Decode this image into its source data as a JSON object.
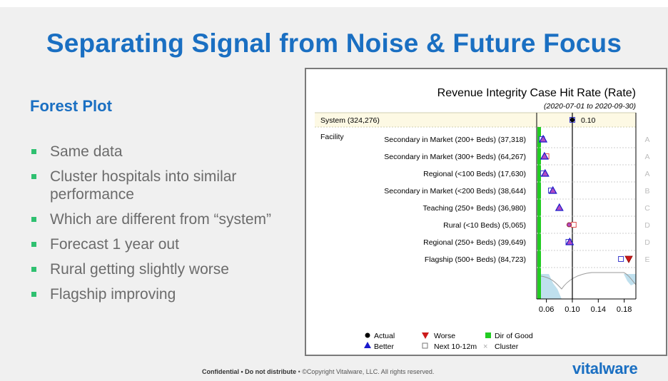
{
  "slide": {
    "title": "Separating Signal from Noise & Future Focus",
    "subtitle": "Forest Plot",
    "bullets": [
      "Same data",
      "Cluster hospitals into similar performance",
      "Which are different from “system”",
      "Forecast 1 year out",
      "Rural getting slightly worse",
      "Flagship improving"
    ],
    "footer_bold": "Confidential • Do not distribute",
    "footer_rest": " • ©Copyright Vitalware, LLC. All rights reserved.",
    "logo": "vitalware"
  },
  "chart_data": {
    "type": "forest",
    "title": "Revenue Integrity Case Hit Rate (Rate)",
    "subtitle": "(2020-07-01 to 2020-09-30)",
    "system": {
      "label": "System (324,276)",
      "value": 0.1,
      "value_label": "0.10"
    },
    "group_label": "Facility",
    "xlim": [
      0.045,
      0.198
    ],
    "xticks": [
      0.06,
      0.1,
      0.14,
      0.18
    ],
    "xtick_labels": [
      "0.06",
      "0.10",
      "0.14",
      "0.18"
    ],
    "dir_of_good": "lower",
    "rows": [
      {
        "label": "Secondary in Market (200+ Beds) (37,318)",
        "actual": 0.055,
        "next": 0.053,
        "marker": "better",
        "cluster": "A"
      },
      {
        "label": "Secondary in Market (300+ Beds) (64,267)",
        "actual": 0.057,
        "next": 0.06,
        "marker": "better",
        "cluster": "A"
      },
      {
        "label": "Regional (<100 Beds) (17,630)",
        "actual": 0.058,
        "next": 0.055,
        "marker": "better",
        "cluster": "A"
      },
      {
        "label": "Secondary in Market (<200 Beds) (38,644)",
        "actual": 0.07,
        "next": 0.067,
        "marker": "better",
        "cluster": "B"
      },
      {
        "label": "Teaching (250+ Beds) (36,980)",
        "actual": 0.08,
        "next": null,
        "marker": "better",
        "cluster": "C"
      },
      {
        "label": "Rural (<10 Beds) (5,065)",
        "actual": 0.095,
        "next": 0.102,
        "marker": "dot",
        "cluster": "D"
      },
      {
        "label": "Regional (250+ Beds) (39,649)",
        "actual": 0.096,
        "next": 0.094,
        "marker": "better",
        "cluster": "D"
      },
      {
        "label": "Flagship (500+ Beds) (84,723)",
        "actual": 0.187,
        "next": 0.175,
        "marker": "worse",
        "cluster": "E"
      }
    ],
    "legend": {
      "actual": "Actual",
      "worse": "Worse",
      "dir_good": "Dir of Good",
      "better": "Better",
      "next": "Next 10-12m",
      "cluster": "Cluster"
    },
    "colors": {
      "better": "#1a1acc",
      "better_fill": "#b04cc0",
      "worse": "#cc1a1a",
      "next_blue": "#3a3acc",
      "next_red": "#e05050",
      "dir_good": "#22cc22",
      "band": "#bfe0ee"
    }
  }
}
